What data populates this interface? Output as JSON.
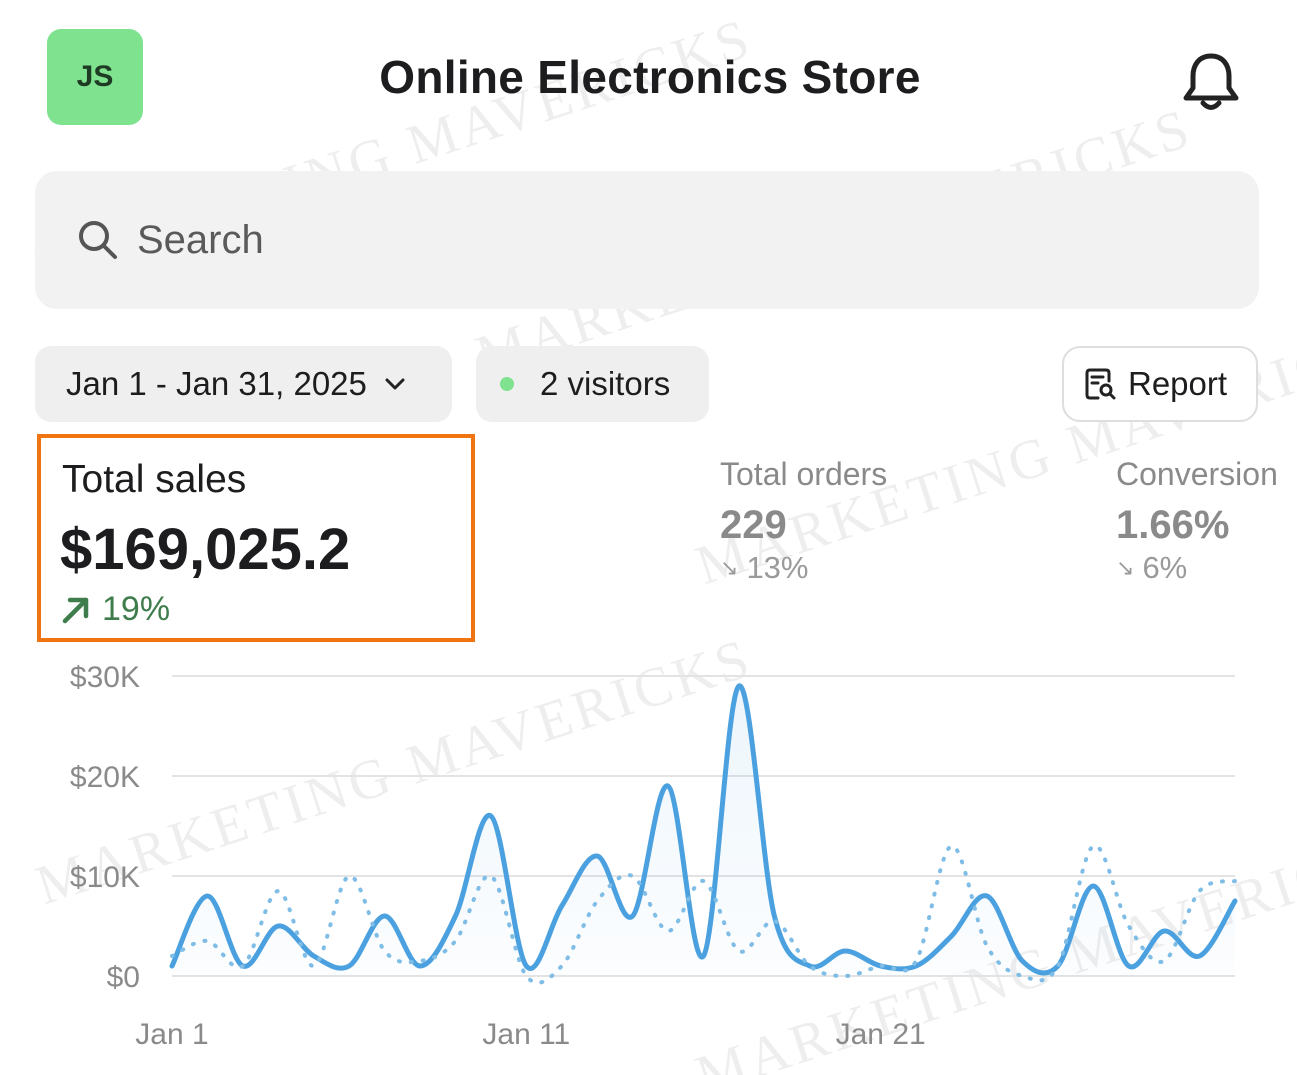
{
  "header": {
    "avatar_initials": "JS",
    "title": "Online Electronics Store",
    "bell_icon": "bell-icon"
  },
  "search": {
    "placeholder": "Search",
    "icon": "search-icon"
  },
  "filters": {
    "date_range": "Jan 1 - Jan 31, 2025",
    "visitors": "2 visitors",
    "visitors_dot_color": "#7ee28f",
    "report_label": "Report"
  },
  "metrics": {
    "total_sales": {
      "label": "Total sales",
      "value": "$169,025.2",
      "change": "19%",
      "direction": "up"
    },
    "total_orders": {
      "label": "Total orders",
      "value": "229",
      "change": "13%",
      "direction": "down"
    },
    "conversion": {
      "label": "Conversion",
      "value": "1.66%",
      "change": "6%",
      "direction": "down"
    }
  },
  "colors": {
    "accent_green": "#3f7d4d",
    "highlight_orange": "#f07410",
    "series_blue": "#4ba1df"
  },
  "watermark": "MARKETING MAVERICKS",
  "chart_data": {
    "type": "line",
    "x": [
      1,
      2,
      3,
      4,
      5,
      6,
      7,
      8,
      9,
      10,
      11,
      12,
      13,
      14,
      15,
      16,
      17,
      18,
      19,
      20,
      21,
      22,
      23,
      24,
      25,
      26,
      27,
      28,
      29,
      30,
      31
    ],
    "x_tick_labels": [
      "Jan 1",
      "Jan 11",
      "Jan 21"
    ],
    "y_tick_labels": [
      "$0",
      "$10K",
      "$20K",
      "$30K"
    ],
    "ylim": [
      0,
      30000
    ],
    "grid": true,
    "series": [
      {
        "style": "solid",
        "values": [
          1000,
          8000,
          1000,
          5000,
          2000,
          1000,
          6000,
          1000,
          6000,
          16000,
          1000,
          7000,
          12000,
          6000,
          19000,
          2000,
          29000,
          6000,
          1000,
          2500,
          1000,
          1000,
          4000,
          8000,
          1500,
          1000,
          9000,
          1000,
          4500,
          2000,
          7500
        ]
      },
      {
        "style": "dotted",
        "values": [
          2000,
          3500,
          1000,
          8500,
          1000,
          10000,
          2500,
          1500,
          3500,
          10000,
          0,
          1000,
          7500,
          10000,
          4500,
          9500,
          2500,
          5500,
          1000,
          0,
          1000,
          1500,
          13000,
          3000,
          0,
          1000,
          13000,
          5000,
          1500,
          8500,
          9500
        ]
      }
    ]
  }
}
